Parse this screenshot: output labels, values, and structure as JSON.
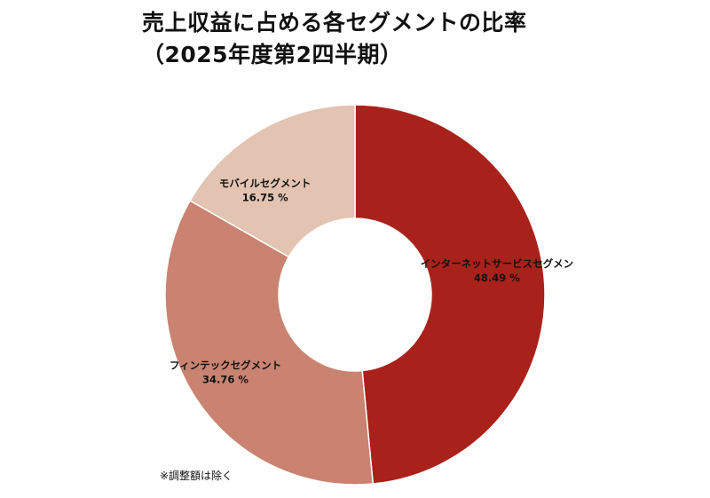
{
  "title_line1": "売上収益に占める各セグメントの比率",
  "title_line2": "（2025年度第2四半期）",
  "footnote": "※調整額は除く",
  "chart_data": {
    "type": "pie",
    "donut": true,
    "start_angle": "12 o'clock",
    "direction": "clockwise",
    "slices": [
      {
        "label": "インターネットサービスセグメン",
        "value": 48.49,
        "display": "48.49 %",
        "color": "#a8221b"
      },
      {
        "label": "フィンテックセグメント",
        "value": 34.76,
        "display": "34.76 %",
        "color": "#c98370"
      },
      {
        "label": "モバイルセグメント",
        "value": 16.75,
        "display": "16.75 %",
        "color": "#e3c3b1"
      }
    ]
  }
}
